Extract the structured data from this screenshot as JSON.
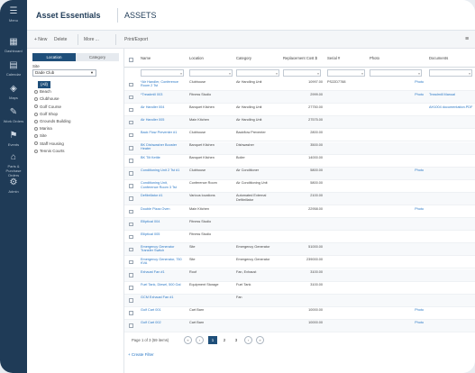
{
  "nav": [
    {
      "label": "Menu",
      "icon": "menu-icon"
    },
    {
      "label": "Dashboard",
      "icon": "dashboard-icon"
    },
    {
      "label": "Calendar",
      "icon": "calendar-icon"
    },
    {
      "label": "Maps",
      "icon": "map-icon"
    },
    {
      "label": "Work Orders",
      "icon": "wrench-icon"
    },
    {
      "label": "Events",
      "icon": "events-icon"
    },
    {
      "label": "Parts & Purchase Orders",
      "icon": "parts-icon"
    },
    {
      "label": "Admin",
      "icon": "gear-icon"
    }
  ],
  "header": {
    "app_title": "Asset Essentials",
    "page_title": "ASSETS"
  },
  "toolbar": {
    "new": "+ New",
    "delete": "Delete",
    "more": "More ...",
    "print": "Print/Export"
  },
  "left": {
    "tab_location": "Location",
    "tab_category": "Category",
    "site_label": "Site",
    "site_value": "Dade Club",
    "locations": [
      "(All)",
      "Beach",
      "Clubhouse",
      "Golf Course",
      "Golf Shop",
      "Grounds Building",
      "Marina",
      "Site",
      "Staff Housing",
      "Tennis Courts"
    ],
    "selected_index": 0
  },
  "table": {
    "columns": [
      "Name",
      "Location",
      "Category",
      "Replacement Cost $",
      "Serial #",
      "Photo",
      "Documents"
    ],
    "rows": [
      {
        "name": "*Air Handler, Conference Room 2 Tst",
        "location": "Clubhouse",
        "category": "Air Handling Unit",
        "cost": "10997.00",
        "serial": "PS22D7788",
        "photo": "Photo",
        "docs": ""
      },
      {
        "name": "*Treadmill 003",
        "location": "Fitness Studio",
        "category": "",
        "cost": "2999.00",
        "serial": "",
        "photo": "Photo",
        "docs": "Treadmill Manual"
      },
      {
        "name": "Air Handler 004",
        "location": "Banquet Kitchen",
        "category": "Air Handling Unit",
        "cost": "27750.00",
        "serial": "",
        "photo": "",
        "docs": "AH1004 documentation.PDF"
      },
      {
        "name": "Air Handler 005",
        "location": "Main Kitchen",
        "category": "Air Handling Unit",
        "cost": "27575.00",
        "serial": "",
        "photo": "",
        "docs": ""
      },
      {
        "name": "Back Flow Preventer #1",
        "location": "Clubhouse",
        "category": "Backflow Preventer",
        "cost": "2800.00",
        "serial": "",
        "photo": "",
        "docs": ""
      },
      {
        "name": "BK Dishwasher Booster Heater",
        "location": "Banquet Kitchen",
        "category": "Dishwasher",
        "cost": "3500.00",
        "serial": "",
        "photo": "",
        "docs": ""
      },
      {
        "name": "BK Tilt Kettle",
        "location": "Banquet Kitchen",
        "category": "Boiler",
        "cost": "14000.00",
        "serial": "",
        "photo": "",
        "docs": ""
      },
      {
        "name": "Conditioning Unit 2 Tst #1",
        "location": "Clubhouse",
        "category": "Air Conditioner",
        "cost": "5800.00",
        "serial": "",
        "photo": "Photo",
        "docs": ""
      },
      {
        "name": "Conditioning Unit, Conference Room 3 Tst",
        "location": "Conference Room",
        "category": "Air Conditioning Unit",
        "cost": "5800.00",
        "serial": "",
        "photo": "",
        "docs": ""
      },
      {
        "name": "Defibrillator #1",
        "location": "Various locations",
        "category": "Automated External Defibrillator",
        "cost": "2100.00",
        "serial": "",
        "photo": "",
        "docs": ""
      },
      {
        "name": "Double Pizza Oven",
        "location": "Main Kitchen",
        "category": "",
        "cost": "22958.00",
        "serial": "",
        "photo": "Photo",
        "docs": ""
      },
      {
        "name": "Elliptical 004",
        "location": "Fitness Studio",
        "category": "",
        "cost": "",
        "serial": "",
        "photo": "",
        "docs": ""
      },
      {
        "name": "Elliptical 005",
        "location": "Fitness Studio",
        "category": "",
        "cost": "",
        "serial": "",
        "photo": "",
        "docs": ""
      },
      {
        "name": "Emergency Generator Transfer Switch",
        "location": "Site",
        "category": "Emergency Generator",
        "cost": "51000.00",
        "serial": "",
        "photo": "",
        "docs": ""
      },
      {
        "name": "Emergency Generator, 750 KVA",
        "location": "Site",
        "category": "Emergency Generator",
        "cost": "239000.00",
        "serial": "",
        "photo": "",
        "docs": ""
      },
      {
        "name": "Exhaust Fan #1",
        "location": "Roof",
        "category": "Fan, Exhaust",
        "cost": "3100.00",
        "serial": "",
        "photo": "",
        "docs": ""
      },
      {
        "name": "Fuel Tank, Diesel, 500 Gal",
        "location": "Equipment Storage",
        "category": "Fuel Tank",
        "cost": "3100.00",
        "serial": "",
        "photo": "",
        "docs": ""
      },
      {
        "name": "GCM Exhaust Fan #1",
        "location": "",
        "category": "Fan",
        "cost": "",
        "serial": "",
        "photo": "",
        "docs": ""
      },
      {
        "name": "Golf Cart 001",
        "location": "Cart Barn",
        "category": "",
        "cost": "10000.00",
        "serial": "",
        "photo": "Photo",
        "docs": ""
      },
      {
        "name": "Golf Cart 002",
        "location": "Cart Barn",
        "category": "",
        "cost": "10000.00",
        "serial": "",
        "photo": "Photo",
        "docs": ""
      }
    ]
  },
  "pager": {
    "summary": "Page 1 of 3 (59 items)",
    "pages": [
      "1",
      "2",
      "3"
    ],
    "current": "1",
    "prev": "‹",
    "first": "«",
    "next": "›",
    "last": "»"
  },
  "create_filter": "+ Create Filter"
}
